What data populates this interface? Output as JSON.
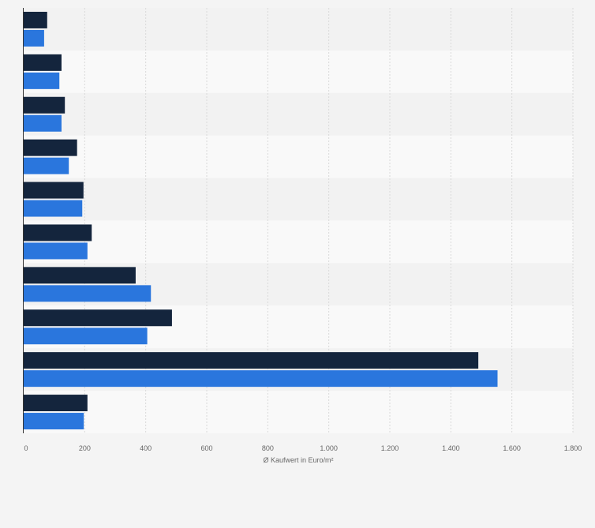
{
  "chart_data": {
    "type": "bar",
    "orientation": "horizontal",
    "categories": [
      "",
      "",
      "",
      "",
      "",
      "",
      "",
      "",
      "",
      ""
    ],
    "series": [
      {
        "color": "#14253d",
        "values": [
          77,
          124,
          135,
          175,
          196,
          223,
          367,
          486,
          1490,
          209
        ]
      },
      {
        "color": "#2a76dd",
        "values": [
          67,
          117,
          124,
          148,
          192,
          209,
          417,
          405,
          1553,
          197
        ]
      }
    ],
    "xlabel": "Ø Kaufwert in Euro/m²",
    "ylabel": "",
    "xlim": [
      0,
      1800
    ],
    "ticks": [
      {
        "value": 0,
        "label": "0"
      },
      {
        "value": 200,
        "label": "200"
      },
      {
        "value": 400,
        "label": "400"
      },
      {
        "value": 600,
        "label": "600"
      },
      {
        "value": 800,
        "label": "800"
      },
      {
        "value": 1000,
        "label": "1.000"
      },
      {
        "value": 1200,
        "label": "1.200"
      },
      {
        "value": 1400,
        "label": "1.400"
      },
      {
        "value": 1600,
        "label": "1.600"
      },
      {
        "value": 1800,
        "label": "1.800"
      }
    ],
    "grid": true,
    "legend": "none"
  }
}
